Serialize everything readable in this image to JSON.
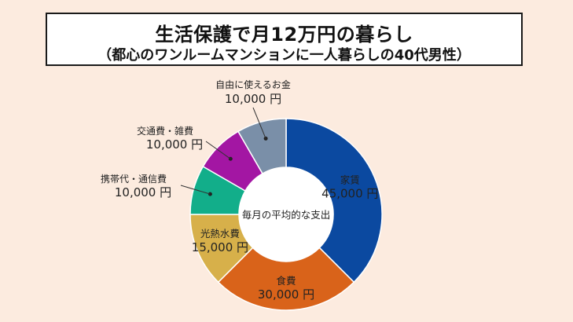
{
  "title": "生活保護で月12万円の暮らし",
  "subtitle": "（都心のワンルームマンションに一人暮らしの40代男性）",
  "center_label": "毎月の平均的な支出",
  "colors": {
    "background": "#fcebdf",
    "rent": "#0b49a0",
    "food": "#d9631a",
    "utilities": "#d7b04a",
    "phone": "#12ae8a",
    "transport": "#a316a3",
    "free": "#7a8fa8"
  },
  "chart_data": {
    "type": "pie",
    "title": "毎月の平均的な支出",
    "unit": "円",
    "categories": [
      "家賃",
      "食費",
      "光熱水費",
      "携帯代・通信費",
      "交通費・雑費",
      "自由に使えるお金"
    ],
    "values": [
      45000,
      30000,
      15000,
      10000,
      10000,
      10000
    ],
    "value_labels": [
      "45,000 円",
      "30,000 円",
      "15,000 円",
      "10,000 円",
      "10,000 円",
      "10,000 円"
    ]
  }
}
